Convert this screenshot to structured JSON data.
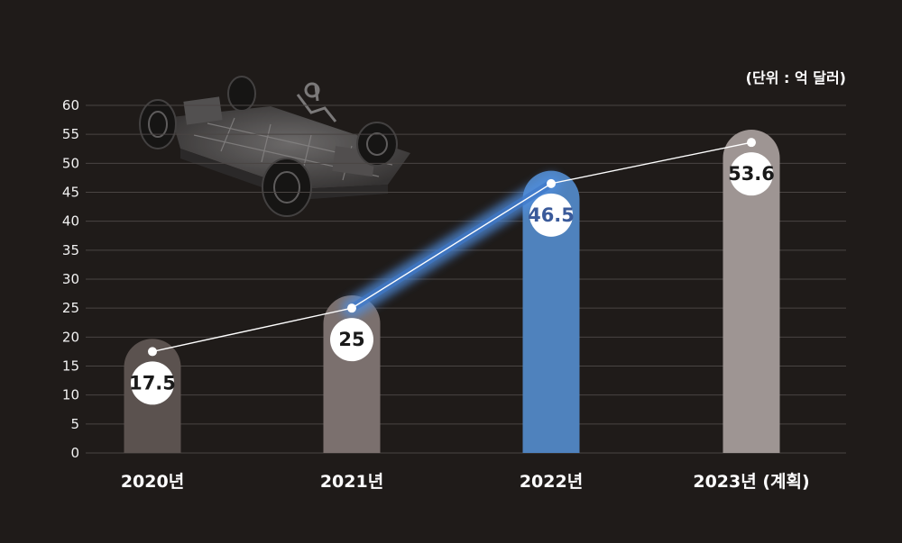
{
  "chart_data": {
    "type": "bar",
    "title": "",
    "unit_label": "(단위 : 억 달러)",
    "xlabel": "",
    "ylabel": "",
    "ylim": [
      0,
      60
    ],
    "yticks": [
      0,
      5,
      10,
      15,
      20,
      25,
      30,
      35,
      40,
      45,
      50,
      55,
      60
    ],
    "grid": true,
    "categories": [
      "2020년",
      "2021년",
      "2022년",
      "2023년 (계획)"
    ],
    "values": [
      17.5,
      25,
      46.5,
      53.6
    ],
    "value_labels": [
      "17.5",
      "25",
      "46.5",
      "53.6"
    ],
    "trend_line": true,
    "highlight_index": 2,
    "colors": {
      "background": "#1f1b19",
      "grid": "#4a4543",
      "bars": [
        "#5b524f",
        "#7b706e",
        "#4f82bd",
        "#9e9593"
      ],
      "trend_line": "#ffffff",
      "highlight_glow": "#4f8ee0",
      "label_text": "#1a1a1a",
      "highlight_label_text": "#3a5a9a"
    }
  }
}
